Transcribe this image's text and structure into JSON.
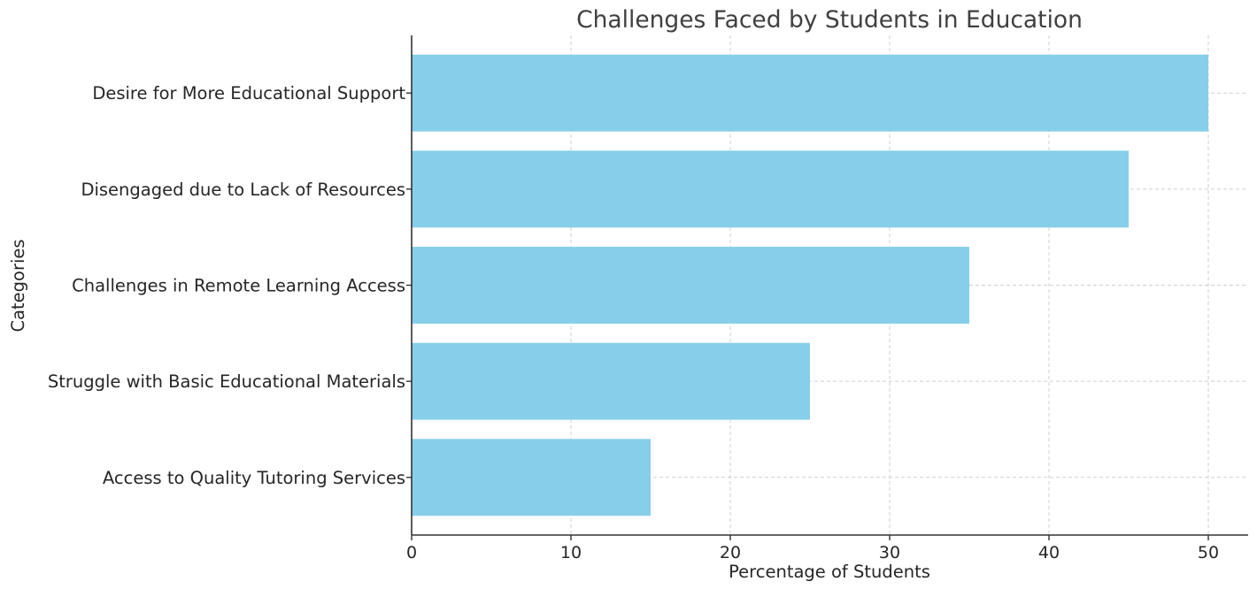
{
  "chart_data": {
    "type": "bar",
    "orientation": "horizontal",
    "title": "Challenges Faced by Students in Education",
    "xlabel": "Percentage of Students",
    "ylabel": "Categories",
    "categories": [
      "Access to Quality Tutoring Services",
      "Struggle with Basic Educational Materials",
      "Challenges in Remote Learning Access",
      "Disengaged due to Lack of Resources",
      "Desire for More Educational Support"
    ],
    "values": [
      15,
      25,
      35,
      45,
      50
    ],
    "xlim": [
      0,
      52.5
    ],
    "xticks": [
      "0",
      "10",
      "20",
      "30",
      "40",
      "50"
    ],
    "grid": true,
    "bar_color": "#87ceeb"
  }
}
